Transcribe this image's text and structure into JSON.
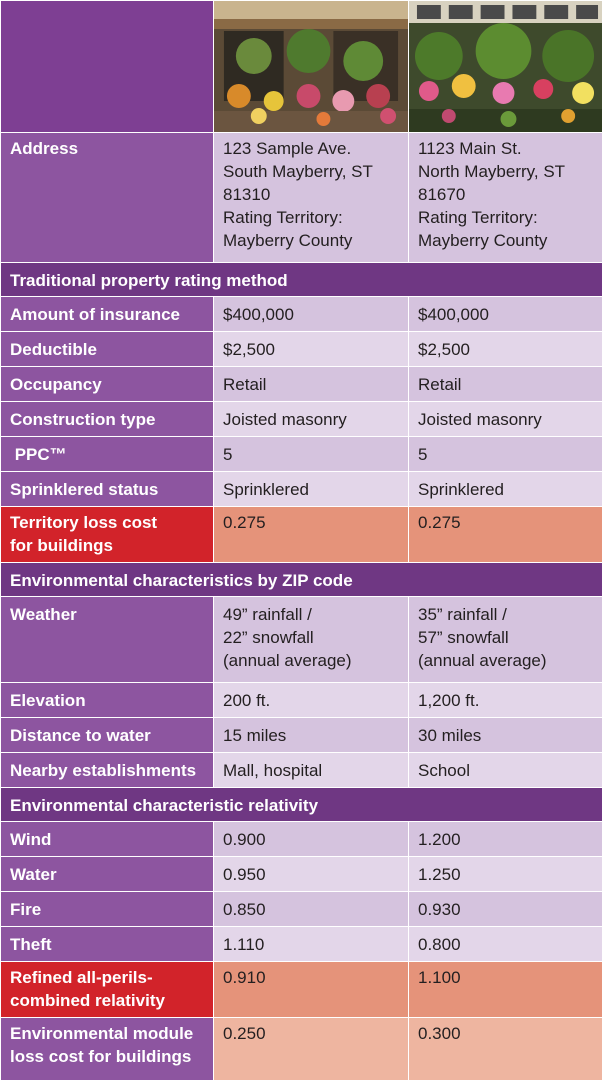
{
  "addresses": [
    {
      "label": "Address",
      "left": [
        "123 Sample Ave.",
        "South Mayberry, ST",
        "81310",
        "Rating Territory:",
        "Mayberry County"
      ],
      "right": [
        "1123 Main St.",
        "North Mayberry, ST",
        "81670",
        "Rating Territory:",
        "Mayberry County"
      ]
    }
  ],
  "sections": {
    "traditional": "Traditional property rating method",
    "environmental": "Environmental characteristics by ZIP code",
    "relativity": "Environmental characteristic relativity"
  },
  "traditional_rows": [
    {
      "label": "Amount  of insurance",
      "left": "$400,000",
      "right": "$400,000"
    },
    {
      "label": "Deductible",
      "left": "$2,500",
      "right": "$2,500"
    },
    {
      "label": "Occupancy",
      "left": "Retail",
      "right": "Retail"
    },
    {
      "label": "Construction type",
      "left": "Joisted masonry",
      "right": "Joisted masonry"
    },
    {
      "label": " PPC™",
      "left": "5",
      "right": "5"
    },
    {
      "label": "Sprinklered status",
      "left": "Sprinklered",
      "right": "Sprinklered"
    }
  ],
  "territory_row": {
    "label": [
      "Territory loss cost",
      "for buildings"
    ],
    "left": "0.275",
    "right": "0.275"
  },
  "environment_rows": {
    "weather": {
      "label": "Weather",
      "left": [
        "49” rainfall /",
        "22” snowfall",
        "(annual average)"
      ],
      "right": [
        "35” rainfall /",
        "57” snowfall",
        "(annual average)"
      ]
    },
    "others": [
      {
        "label": "Elevation",
        "left": "200 ft.",
        "right": "1,200 ft."
      },
      {
        "label": "Distance to water",
        "left": "15 miles",
        "right": "30 miles"
      },
      {
        "label": "Nearby establishments",
        "left": "Mall, hospital",
        "right": "School"
      }
    ]
  },
  "relativity_rows": [
    {
      "label": "Wind",
      "left": "0.900",
      "right": "1.200"
    },
    {
      "label": "Water",
      "left": "0.950",
      "right": "1.250"
    },
    {
      "label": "Fire",
      "left": "0.850",
      "right": "0.930"
    },
    {
      "label": "Theft",
      "left": "1.110",
      "right": "0.800"
    }
  ],
  "refined_row": {
    "label": [
      "Refined all-perils-",
      "combined relativity"
    ],
    "left": "0.910",
    "right": "1.100"
  },
  "module_row": {
    "label": [
      "Environmental module",
      "loss cost for buildings"
    ],
    "left": "0.250",
    "right": "0.300"
  },
  "colors": {
    "label_purple": "#8d55a0",
    "section_purple": "#6f3783",
    "lavender_a": "#d5c3de",
    "lavender_b": "#e3d6e9",
    "highlight_red": "#d2232a",
    "salmon": "#e5937a",
    "peach": "#eeb5a0"
  },
  "icons": {
    "left_photo": "flower-shop-storefront-photo",
    "right_photo": "garden-shop-storefront-photo"
  }
}
